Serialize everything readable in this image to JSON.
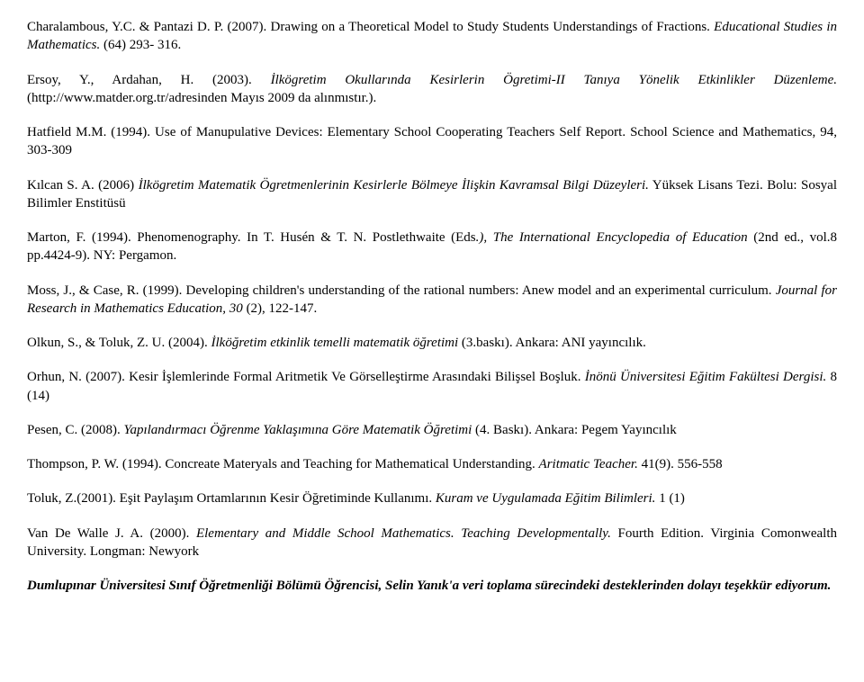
{
  "refs": {
    "r1a": "Charalambous, Y.C. & Pantazi D. P. (2007). Drawing on a Theoretical Model to Study Students Understandings of Fractions. ",
    "r1b": "Educational Studies in Mathematics.",
    "r1c": " (64) 293- 316.",
    "r2a": "Ersoy, Y., Ardahan, H. (2003). ",
    "r2b": "İlkögretim Okullarında Kesirlerin Ögretimi-II Tanıya Yönelik Etkinlikler Düzenleme.",
    "r2c": " (http://www.matder.org.tr/adresinden Mayıs 2009 da alınmıstır.).",
    "r3a": "Hatfield M.M. (1994). Use of Manupulative Devices: Elementary School  Cooperating Teachers Self Report. School Science and Mathematics, 94, 303-309",
    "r4a": "Kılcan S. A. (2006) ",
    "r4b": "İlkögretim Matematik Ögretmenlerinin Kesirlerle Bölmeye İlişkin Kavramsal Bilgi Düzeyleri.",
    "r4c": " Yüksek Lisans Tezi. Bolu: Sosyal Bilimler Enstitüsü",
    "r5a": "Marton, F. (1994). Phenomenography. In T. Husén & T. N. Postlethwaite (Eds",
    "r5b": ".), The        International        Encyclopedia        of Education ",
    "r5c": "(2nd ed., vol.8 pp.4424-9). NY: Pergamon.",
    "r6a": "Moss, J., & Case, R. (1999). Developing children's understanding of the rational numbers: Anew model and an experimental curriculum. ",
    "r6b": "Journal for Research in Mathematics Education, 30 ",
    "r6c": "(2), 122-147.",
    "r7a": "Olkun, S., & Toluk,  Z.  U. (2004). ",
    "r7b": "İlköğretim etkinlik temelli matematik öğretimi ",
    "r7c": "(3.baskı). Ankara: ANI yayıncılık.",
    "r8a": "Orhun, N. (2007). Kesir İşlemlerinde Formal Aritmetik Ve Görselleştirme Arasındaki Bilişsel Boşluk. ",
    "r8b": "İnönü Üniversitesi Eğitim Fakültesi Dergisi.",
    "r8c": " 8 (14)",
    "r9a": "Pesen, C. (2008). ",
    "r9b": "Yapılandırmacı Öğrenme Yaklaşımına Göre Matematik Öğretimi ",
    "r9c": "(4. Baskı). Ankara: Pegem Yayıncılık",
    "r10a": "Thompson, P. W. (1994). Concreate Materyals and Teaching for Mathematical Understanding.  ",
    "r10b": "Aritmatic Teacher.",
    "r10c": " 41(9). 556-558",
    "r11a": "Toluk, Z.(2001). Eşit Paylaşım Ortamlarının Kesir Öğretiminde Kullanımı. ",
    "r11b": "Kuram ve Uygulamada Eğitim Bilimleri.",
    "r11c": " 1 (1)",
    "r12a": "Van De Walle J. A. (2000). ",
    "r12b": "Elementary and Middle School Mathematics. Teaching Developmentally.",
    "r12c": " Fourth Edition. Virginia Comonwealth University. Longman: Newyork"
  },
  "ack": "Dumlupınar Üniversitesi Sınıf Öğretmenliği Bölümü Öğrencisi, Selin Yanık'a veri toplama sürecindeki desteklerinden dolayı teşekkür ediyorum."
}
